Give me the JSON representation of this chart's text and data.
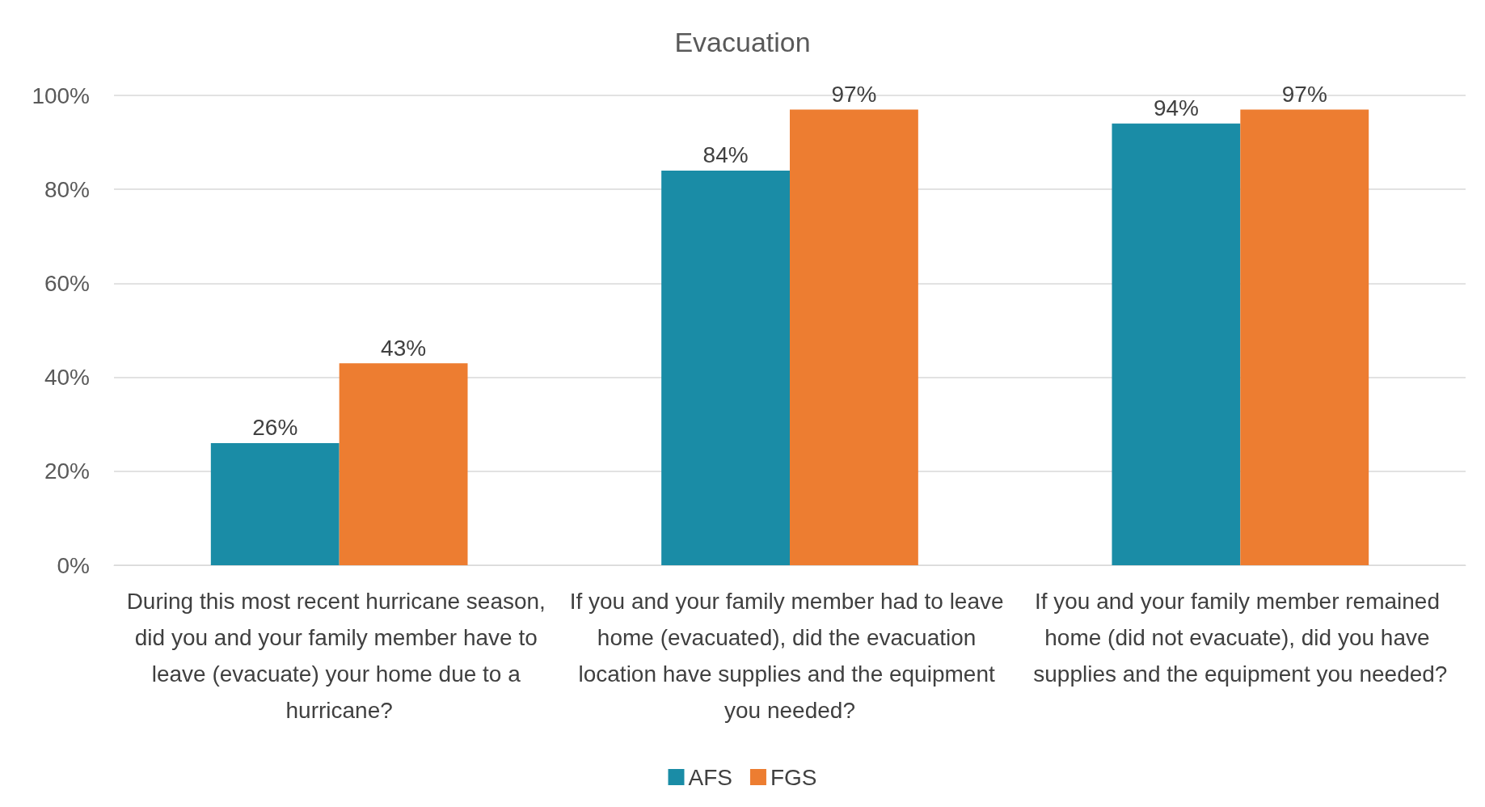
{
  "chart_data": {
    "type": "bar",
    "title": "Evacuation",
    "categories": [
      "During this most recent hurricane season, did you and your family member have to leave (evacuate) your home due to a hurricane?",
      "If you and your family member had to leave home (evacuated), did the evacuation location have supplies and the equipment you needed?",
      "If you and your family member remained home (did not evacuate), did you have supplies and the equipment you needed?"
    ],
    "series": [
      {
        "name": "AFS",
        "color": "#1a8ca6",
        "values": [
          26,
          84,
          94
        ],
        "value_labels": [
          "26%",
          "84%",
          "94%"
        ]
      },
      {
        "name": "FGS",
        "color": "#ed7d31",
        "values": [
          43,
          97,
          97
        ],
        "value_labels": [
          "43%",
          "97%",
          "97%"
        ]
      }
    ],
    "ylim": [
      0,
      100
    ],
    "yticks": [
      {
        "value": 0,
        "label": "0%"
      },
      {
        "value": 20,
        "label": "20%"
      },
      {
        "value": 40,
        "label": "40%"
      },
      {
        "value": 60,
        "label": "60%"
      },
      {
        "value": 80,
        "label": "80%"
      },
      {
        "value": 100,
        "label": "100%"
      }
    ],
    "grid": "y",
    "legend": "bottom"
  }
}
